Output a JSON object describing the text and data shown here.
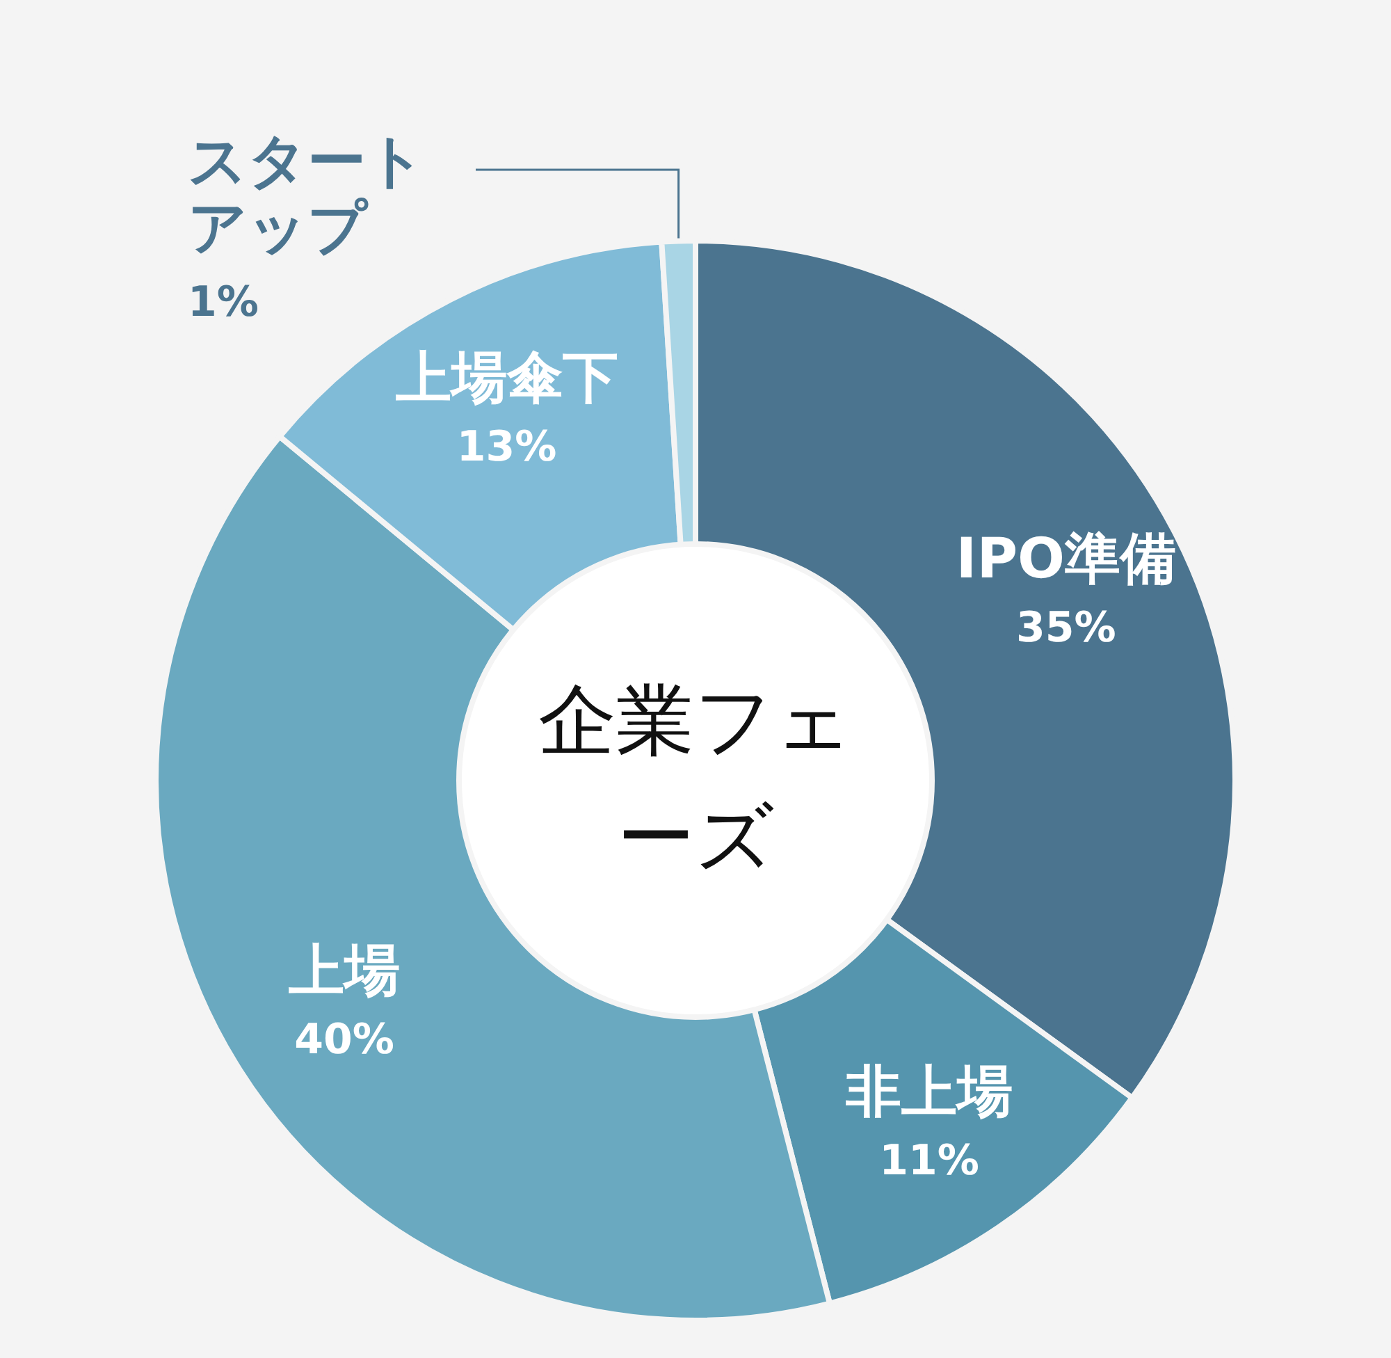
{
  "chart_data": {
    "type": "donut",
    "title": "企業フェーズ",
    "categories": [
      "IPO準備",
      "非上場",
      "上場",
      "上場傘下",
      "スタートアップ"
    ],
    "values": [
      35,
      11,
      40,
      13,
      1
    ],
    "value_labels": [
      "35%",
      "11%",
      "40%",
      "13%",
      "1%"
    ],
    "colors": [
      "#4b748f",
      "#5595ae",
      "#6aa9c0",
      "#80bbd7",
      "#a9d5e5"
    ]
  }
}
